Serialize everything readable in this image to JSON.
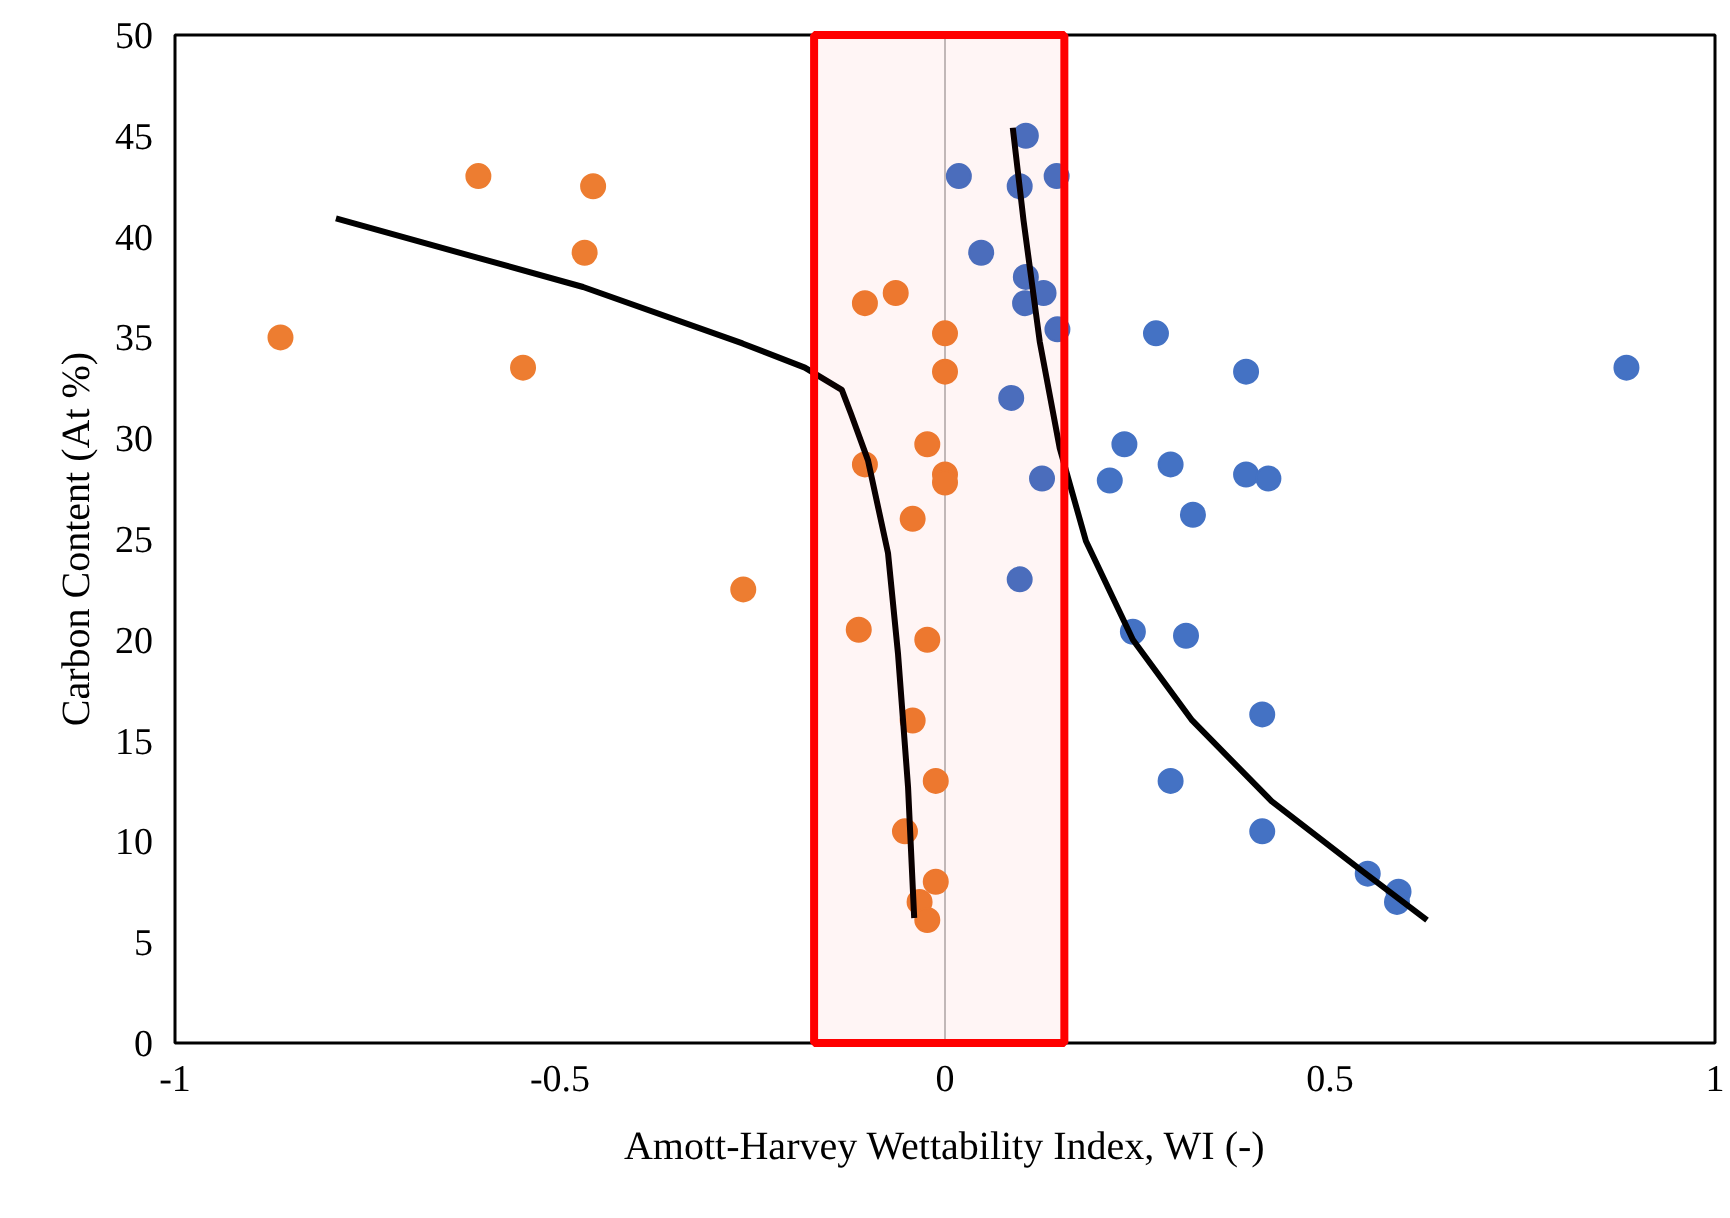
{
  "chart_data": {
    "type": "scatter",
    "xlabel": "Amott-Harvey Wettability Index, WI (-)",
    "ylabel": "Carbon Content (At %)",
    "xlim": [
      -1,
      1
    ],
    "ylim": [
      0,
      50
    ],
    "xticks": [
      -1,
      -0.5,
      0,
      0.5,
      1
    ],
    "yticks": [
      0,
      5,
      10,
      15,
      20,
      25,
      30,
      35,
      40,
      45,
      50
    ],
    "grid": false,
    "marker": "circle",
    "series": [
      {
        "color": "#ed7d31",
        "x": [
          -0.606,
          -0.457,
          -0.468,
          -0.863,
          -0.548,
          -0.262,
          -0.104,
          -0.064,
          -0.104,
          -0.112,
          0.0,
          0.0,
          -0.023,
          0.0,
          0.0,
          -0.042,
          -0.023,
          -0.042,
          -0.012,
          -0.052,
          -0.012,
          -0.033,
          -0.023
        ],
        "values": [
          43.0,
          42.5,
          39.2,
          35.0,
          33.5,
          22.5,
          36.7,
          37.2,
          28.7,
          20.5,
          35.2,
          33.3,
          29.7,
          28.2,
          27.8,
          26.0,
          20.0,
          16.0,
          13.0,
          10.5,
          8.0,
          7.0,
          6.1
        ]
      },
      {
        "color": "#4472c4",
        "x": [
          0.105,
          0.018,
          0.097,
          0.145,
          0.047,
          0.105,
          0.128,
          0.104,
          0.146,
          0.274,
          0.391,
          0.885,
          0.086,
          0.233,
          0.293,
          0.126,
          0.214,
          0.391,
          0.42,
          0.322,
          0.097,
          0.244,
          0.313,
          0.412,
          0.293,
          0.412,
          0.549,
          0.589,
          0.587
        ],
        "values": [
          45.0,
          43.0,
          42.5,
          43.0,
          39.2,
          38.0,
          37.2,
          36.7,
          35.4,
          35.2,
          33.3,
          33.5,
          32.0,
          29.7,
          28.7,
          28.0,
          27.9,
          28.2,
          28.0,
          26.2,
          23.0,
          20.4,
          20.2,
          16.3,
          13.0,
          10.5,
          8.4,
          7.5,
          7.0
        ]
      },
      {
        "type": "line",
        "color": "#000000",
        "marker": "none",
        "line_style": "solid",
        "x": [
          -0.791,
          -0.47,
          -0.263,
          -0.182,
          -0.134,
          -0.122,
          -0.1,
          -0.074,
          -0.061,
          -0.048,
          -0.04
        ],
        "values": [
          40.9,
          37.5,
          34.7,
          33.5,
          32.4,
          31.2,
          28.9,
          24.3,
          19.3,
          12.7,
          6.2
        ]
      },
      {
        "type": "line",
        "color": "#000000",
        "marker": "none",
        "line_style": "solid",
        "x": [
          0.088,
          0.102,
          0.123,
          0.149,
          0.183,
          0.244,
          0.321,
          0.424,
          0.536,
          0.626
        ],
        "values": [
          45.4,
          40.8,
          34.8,
          29.5,
          24.9,
          20.0,
          16.0,
          12.0,
          8.7,
          6.1
        ]
      }
    ],
    "ref_lines": [
      {
        "axis": "x",
        "value": 0,
        "color": "#bfbfbf"
      }
    ],
    "bands": [
      {
        "axis": "x",
        "from": -0.17,
        "to": 0.155,
        "color": "#ff0000"
      }
    ]
  }
}
